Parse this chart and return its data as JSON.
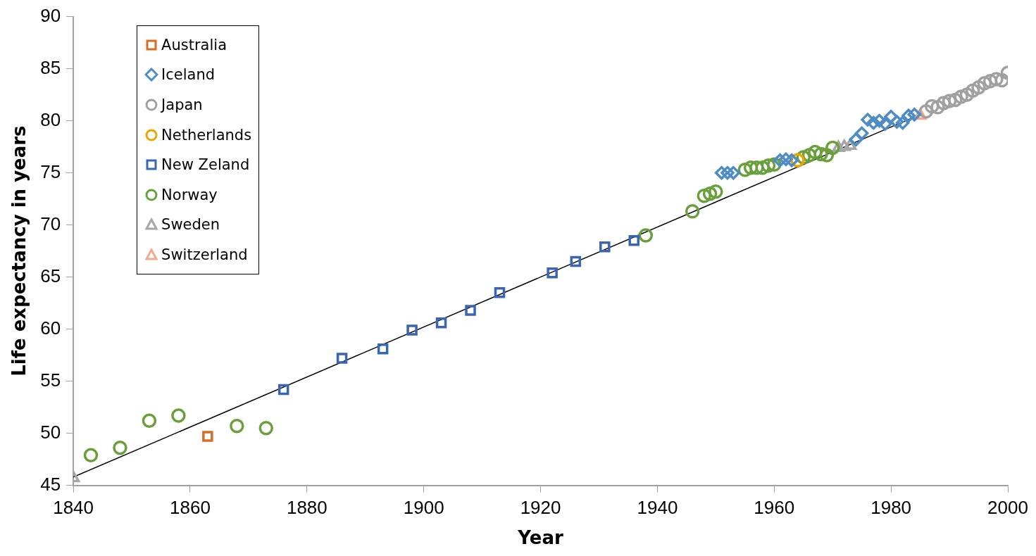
{
  "chart_data": {
    "type": "scatter",
    "xlabel": "Year",
    "ylabel": "Life expectancy in years",
    "xlim": [
      1840,
      2000
    ],
    "xticks": [
      1840,
      1860,
      1880,
      1900,
      1920,
      1940,
      1960,
      1980,
      2000
    ],
    "ylim": [
      45,
      90
    ],
    "yticks": [
      45,
      50,
      55,
      60,
      65,
      70,
      75,
      80,
      85,
      90
    ],
    "grid": false,
    "legend": "top left",
    "series": [
      {
        "name": "Australia",
        "color": "#d86c24",
        "marker": "square",
        "x": [
          1863
        ],
        "values": [
          49.7
        ]
      },
      {
        "name": "Iceland",
        "color": "#4e8cc6",
        "marker": "diamond",
        "x": [
          1951,
          1952,
          1953,
          1961,
          1962,
          1963,
          1974,
          1975,
          1976,
          1977,
          1978,
          1979,
          1980,
          1981,
          1982,
          1983,
          1984
        ],
        "values": [
          75.0,
          75.0,
          75.0,
          76.2,
          76.3,
          76.2,
          78.2,
          78.8,
          80.1,
          79.8,
          80.0,
          79.7,
          80.4,
          79.9,
          79.8,
          80.5,
          80.6
        ]
      },
      {
        "name": "Japan",
        "color": "#a0a0a0",
        "marker": "circle",
        "x": [
          1986,
          1987,
          1988,
          1989,
          1990,
          1991,
          1992,
          1993,
          1994,
          1995,
          1996,
          1997,
          1998,
          1999,
          2000
        ],
        "values": [
          80.9,
          81.4,
          81.3,
          81.7,
          81.9,
          82.0,
          82.3,
          82.5,
          82.9,
          83.2,
          83.6,
          83.8,
          84.0,
          83.9,
          84.6
        ]
      },
      {
        "name": "Netherlands",
        "color": "#e8a600",
        "marker": "circle",
        "x": [
          1964
        ],
        "values": [
          76.2
        ]
      },
      {
        "name": "New Zeland",
        "color": "#3a64b4",
        "marker": "square",
        "x": [
          1876,
          1886,
          1893,
          1898,
          1903,
          1908,
          1913,
          1922,
          1926,
          1931,
          1936
        ],
        "values": [
          54.2,
          57.2,
          58.1,
          59.9,
          60.6,
          61.8,
          63.5,
          65.4,
          66.5,
          67.9,
          68.5
        ]
      },
      {
        "name": "Norway",
        "color": "#6aa03c",
        "marker": "circle",
        "x": [
          1843,
          1848,
          1853,
          1858,
          1868,
          1873,
          1938,
          1946,
          1948,
          1949,
          1950,
          1955,
          1956,
          1957,
          1958,
          1959,
          1960,
          1965,
          1966,
          1967,
          1968,
          1969,
          1970
        ],
        "values": [
          47.9,
          48.6,
          51.2,
          51.7,
          50.7,
          50.5,
          69.0,
          71.3,
          72.8,
          73.0,
          73.2,
          75.3,
          75.5,
          75.5,
          75.5,
          75.7,
          75.8,
          76.5,
          76.7,
          77.0,
          76.8,
          76.7,
          77.4
        ]
      },
      {
        "name": "Sweden",
        "color": "#a6a6a6",
        "marker": "triangle",
        "x": [
          1840,
          1971,
          1972,
          1973
        ],
        "values": [
          45.7,
          77.4,
          77.5,
          77.6
        ]
      },
      {
        "name": "Switzerland",
        "color": "#f4a88c",
        "marker": "triangle",
        "x": [
          1985
        ],
        "values": [
          80.5
        ]
      },
      {
        "type": "line",
        "color": "#000000",
        "marker": "none",
        "line_style": "solid",
        "x": [
          1840,
          1985
        ],
        "values": [
          45.8,
          80.6
        ]
      }
    ]
  }
}
